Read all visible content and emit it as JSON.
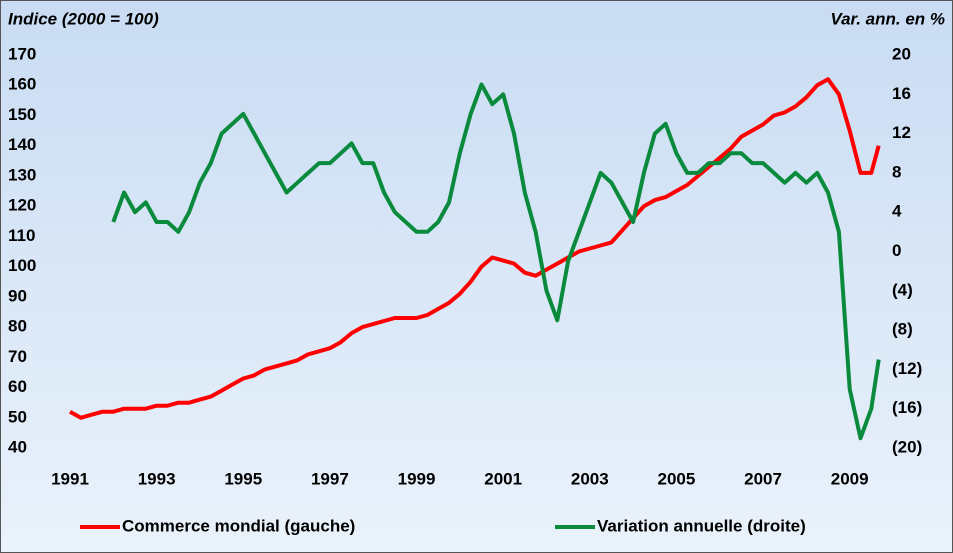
{
  "chart_data": {
    "type": "line",
    "ylabel": "Indice (2000 = 100)",
    "y2label": "Var. ann. en %",
    "x": [
      1991,
      1991.25,
      1991.5,
      1991.75,
      1992,
      1992.25,
      1992.5,
      1992.75,
      1993,
      1993.25,
      1993.5,
      1993.75,
      1994,
      1994.25,
      1994.5,
      1994.75,
      1995,
      1995.25,
      1995.5,
      1995.75,
      1996,
      1996.25,
      1996.5,
      1996.75,
      1997,
      1997.25,
      1997.5,
      1997.75,
      1998,
      1998.25,
      1998.5,
      1998.75,
      1999,
      1999.25,
      1999.5,
      1999.75,
      2000,
      2000.25,
      2000.5,
      2000.75,
      2001,
      2001.25,
      2001.5,
      2001.75,
      2002,
      2002.25,
      2002.5,
      2002.75,
      2003,
      2003.25,
      2003.5,
      2003.75,
      2004,
      2004.25,
      2004.5,
      2004.75,
      2005,
      2005.25,
      2005.5,
      2005.75,
      2006,
      2006.25,
      2006.5,
      2006.75,
      2007,
      2007.25,
      2007.5,
      2007.75,
      2008,
      2008.25,
      2008.5,
      2008.75,
      2009,
      2009.25,
      2009.5,
      2009.67
    ],
    "series": [
      {
        "name": "Commerce mondial (gauche)",
        "color": "#ff0000",
        "axis": "y",
        "values": [
          52,
          50,
          51,
          52,
          52,
          53,
          53,
          53,
          54,
          54,
          55,
          55,
          56,
          57,
          59,
          61,
          63,
          64,
          66,
          67,
          68,
          69,
          71,
          72,
          73,
          75,
          78,
          80,
          81,
          82,
          83,
          83,
          83,
          84,
          86,
          88,
          91,
          95,
          100,
          103,
          102,
          101,
          98,
          97,
          99,
          101,
          103,
          105,
          106,
          107,
          108,
          112,
          116,
          120,
          122,
          123,
          125,
          127,
          130,
          133,
          136,
          139,
          143,
          145,
          147,
          150,
          151,
          153,
          156,
          160,
          162,
          157,
          145,
          131,
          131,
          140
        ]
      },
      {
        "name": "Variation annuelle (droite)",
        "color": "#0a8a3c",
        "axis": "y2",
        "values": [
          null,
          null,
          null,
          null,
          3,
          6,
          4,
          5,
          3,
          3,
          2,
          4,
          7,
          9,
          12,
          13,
          14,
          12,
          10,
          8,
          6,
          7,
          8,
          9,
          9,
          10,
          11,
          9,
          9,
          6,
          4,
          3,
          2,
          2,
          3,
          5,
          10,
          14,
          17,
          15,
          16,
          12,
          6,
          2,
          -4,
          -7,
          -1,
          2,
          5,
          8,
          7,
          5,
          3,
          8,
          12,
          13,
          10,
          8,
          8,
          9,
          9,
          10,
          10,
          9,
          9,
          8,
          7,
          8,
          7,
          8,
          6,
          2,
          -14,
          -19,
          -16,
          -11
        ]
      }
    ],
    "xlim": [
      1991,
      2009.7
    ],
    "xticks": [
      1991,
      1993,
      1995,
      1997,
      1999,
      2001,
      2003,
      2005,
      2007,
      2009
    ],
    "ylim": [
      40,
      170
    ],
    "yticks": [
      40,
      50,
      60,
      70,
      80,
      90,
      100,
      110,
      120,
      130,
      140,
      150,
      160,
      170
    ],
    "y2lim": [
      -20,
      20
    ],
    "y2ticks": [
      20,
      16,
      12,
      8,
      4,
      0,
      {
        "value": -4,
        "label": "(4)"
      },
      {
        "value": -8,
        "label": "(8)"
      },
      {
        "value": -12,
        "label": "(12)"
      },
      {
        "value": -16,
        "label": "(16)"
      },
      {
        "value": -20,
        "label": "(20)"
      }
    ],
    "legend": "bottom"
  }
}
